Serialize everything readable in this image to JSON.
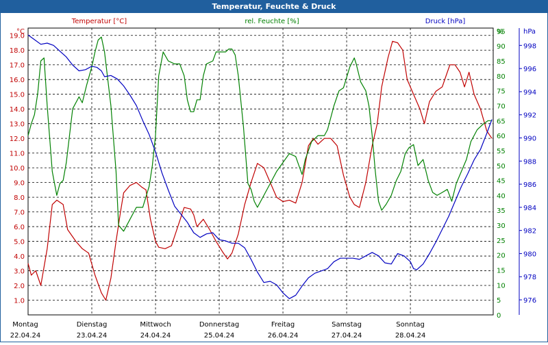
{
  "window": {
    "title": "Temperatur, Feuchte & Druck"
  },
  "chart_data": {
    "type": "line",
    "x": [
      "22.04.24",
      "23.04.24",
      "24.04.24",
      "25.04.24",
      "26.04.24",
      "27.04.24",
      "28.04.24"
    ],
    "day_names": [
      "Montag",
      "Dienstag",
      "Mittwoch",
      "Donnerstag",
      "Freitag",
      "Samstag",
      "Sonntag"
    ],
    "axes": {
      "temperature": {
        "title": "Temperatur [°C]",
        "unit": "°C",
        "min": 0,
        "max": 19.5,
        "ticks": [
          1.0,
          2.0,
          3.0,
          4.0,
          5.0,
          6.0,
          7.0,
          8.0,
          9.0,
          10.0,
          11.0,
          12.0,
          13.0,
          14.0,
          15.0,
          16.0,
          17.0,
          18.0,
          19.0
        ],
        "color": "#c00000"
      },
      "humidity": {
        "title": "rel. Feuchte [%]",
        "unit": "%",
        "min": 0,
        "max": 96,
        "ticks": [
          0,
          5,
          10,
          15,
          20,
          25,
          30,
          35,
          40,
          45,
          50,
          55,
          60,
          65,
          70,
          75,
          80,
          85,
          90,
          95
        ],
        "color": "#008000"
      },
      "pressure": {
        "title": "Druck [hPa]",
        "unit": "hPa",
        "min": 974.7,
        "max": 999.5,
        "ticks": [
          976,
          978,
          980,
          982,
          984,
          986,
          988,
          990,
          992,
          994,
          996,
          998
        ],
        "color": "#0000c0"
      }
    },
    "grid": true,
    "series": [
      {
        "name": "Temperatur [°C]",
        "axis": "temperature",
        "color": "#c00000",
        "points": [
          [
            0,
            3.5
          ],
          [
            0.05,
            2.7
          ],
          [
            0.12,
            3.0
          ],
          [
            0.2,
            2.0
          ],
          [
            0.3,
            4.5
          ],
          [
            0.38,
            7.5
          ],
          [
            0.45,
            7.8
          ],
          [
            0.55,
            7.5
          ],
          [
            0.62,
            5.8
          ],
          [
            0.75,
            5.0
          ],
          [
            0.85,
            4.5
          ],
          [
            0.95,
            4.2
          ],
          [
            1.05,
            2.7
          ],
          [
            1.15,
            1.5
          ],
          [
            1.22,
            1.0
          ],
          [
            1.3,
            2.5
          ],
          [
            1.38,
            5.0
          ],
          [
            1.45,
            7.0
          ],
          [
            1.5,
            8.3
          ],
          [
            1.6,
            8.8
          ],
          [
            1.7,
            9.0
          ],
          [
            1.78,
            8.7
          ],
          [
            1.85,
            8.5
          ],
          [
            1.92,
            6.5
          ],
          [
            2.0,
            5.0
          ],
          [
            2.05,
            4.6
          ],
          [
            2.15,
            4.5
          ],
          [
            2.25,
            4.7
          ],
          [
            2.35,
            6.0
          ],
          [
            2.45,
            7.3
          ],
          [
            2.55,
            7.2
          ],
          [
            2.6,
            6.8
          ],
          [
            2.65,
            6.0
          ],
          [
            2.75,
            6.5
          ],
          [
            2.85,
            5.8
          ],
          [
            2.95,
            5.0
          ],
          [
            3.05,
            4.3
          ],
          [
            3.13,
            3.8
          ],
          [
            3.2,
            4.2
          ],
          [
            3.3,
            5.5
          ],
          [
            3.4,
            7.5
          ],
          [
            3.5,
            9.0
          ],
          [
            3.6,
            10.3
          ],
          [
            3.7,
            10.0
          ],
          [
            3.8,
            9.0
          ],
          [
            3.9,
            8.0
          ],
          [
            4.0,
            7.7
          ],
          [
            4.1,
            7.8
          ],
          [
            4.2,
            7.6
          ],
          [
            4.3,
            9.0
          ],
          [
            4.4,
            11.5
          ],
          [
            4.48,
            12.0
          ],
          [
            4.55,
            11.6
          ],
          [
            4.65,
            12.0
          ],
          [
            4.75,
            12.0
          ],
          [
            4.85,
            11.5
          ],
          [
            4.95,
            9.5
          ],
          [
            5.05,
            8.0
          ],
          [
            5.12,
            7.5
          ],
          [
            5.2,
            7.3
          ],
          [
            5.3,
            9.0
          ],
          [
            5.4,
            11.5
          ],
          [
            5.48,
            13.0
          ],
          [
            5.55,
            15.5
          ],
          [
            5.65,
            17.5
          ],
          [
            5.72,
            18.6
          ],
          [
            5.8,
            18.5
          ],
          [
            5.88,
            18.0
          ],
          [
            5.95,
            16.0
          ],
          [
            6.05,
            15.0
          ],
          [
            6.15,
            14.0
          ],
          [
            6.22,
            13.0
          ],
          [
            6.3,
            14.5
          ],
          [
            6.4,
            15.2
          ],
          [
            6.5,
            15.5
          ],
          [
            6.58,
            16.5
          ],
          [
            6.62,
            17.0
          ],
          [
            6.7,
            17.0
          ],
          [
            6.78,
            16.5
          ],
          [
            6.85,
            15.5
          ],
          [
            6.92,
            16.5
          ],
          [
            7.0,
            15.0
          ],
          [
            7.1,
            14.0
          ],
          [
            7.2,
            12.5
          ],
          [
            7.28,
            12.0
          ]
        ]
      },
      {
        "name": "rel. Feuchte [%]",
        "axis": "humidity",
        "color": "#008000",
        "points": [
          [
            0,
            60
          ],
          [
            0.05,
            64
          ],
          [
            0.1,
            67
          ],
          [
            0.15,
            74
          ],
          [
            0.2,
            85
          ],
          [
            0.25,
            86
          ],
          [
            0.3,
            70
          ],
          [
            0.38,
            48
          ],
          [
            0.45,
            40
          ],
          [
            0.5,
            44
          ],
          [
            0.55,
            45
          ],
          [
            0.6,
            51
          ],
          [
            0.7,
            69
          ],
          [
            0.8,
            73
          ],
          [
            0.85,
            71
          ],
          [
            0.92,
            77
          ],
          [
            1.0,
            83
          ],
          [
            1.05,
            88
          ],
          [
            1.1,
            92
          ],
          [
            1.15,
            93
          ],
          [
            1.2,
            88
          ],
          [
            1.3,
            70
          ],
          [
            1.38,
            48
          ],
          [
            1.42,
            30
          ],
          [
            1.5,
            28
          ],
          [
            1.6,
            32
          ],
          [
            1.7,
            36
          ],
          [
            1.8,
            36
          ],
          [
            1.9,
            43
          ],
          [
            1.95,
            50
          ],
          [
            2.0,
            60
          ],
          [
            2.05,
            80
          ],
          [
            2.12,
            88
          ],
          [
            2.2,
            85
          ],
          [
            2.3,
            84
          ],
          [
            2.38,
            84
          ],
          [
            2.45,
            80
          ],
          [
            2.5,
            72
          ],
          [
            2.55,
            68
          ],
          [
            2.6,
            68
          ],
          [
            2.65,
            72
          ],
          [
            2.7,
            72
          ],
          [
            2.75,
            80
          ],
          [
            2.8,
            84
          ],
          [
            2.9,
            85
          ],
          [
            2.95,
            88
          ],
          [
            3.0,
            88
          ],
          [
            3.1,
            88
          ],
          [
            3.15,
            89
          ],
          [
            3.2,
            89
          ],
          [
            3.25,
            87
          ],
          [
            3.3,
            80
          ],
          [
            3.38,
            63
          ],
          [
            3.45,
            44
          ],
          [
            3.5,
            42
          ],
          [
            3.55,
            38
          ],
          [
            3.6,
            36
          ],
          [
            3.7,
            40
          ],
          [
            3.8,
            44
          ],
          [
            3.9,
            48
          ],
          [
            4.0,
            51
          ],
          [
            4.1,
            54
          ],
          [
            4.2,
            53
          ],
          [
            4.25,
            50
          ],
          [
            4.3,
            47
          ],
          [
            4.35,
            52
          ],
          [
            4.45,
            58
          ],
          [
            4.55,
            60
          ],
          [
            4.65,
            60
          ],
          [
            4.7,
            62
          ],
          [
            4.8,
            70
          ],
          [
            4.88,
            75
          ],
          [
            4.95,
            76
          ],
          [
            5.05,
            83
          ],
          [
            5.12,
            86
          ],
          [
            5.15,
            84
          ],
          [
            5.22,
            78
          ],
          [
            5.3,
            75
          ],
          [
            5.35,
            70
          ],
          [
            5.4,
            60
          ],
          [
            5.45,
            48
          ],
          [
            5.5,
            38
          ],
          [
            5.55,
            35
          ],
          [
            5.62,
            37
          ],
          [
            5.7,
            40
          ],
          [
            5.78,
            45
          ],
          [
            5.85,
            48
          ],
          [
            5.92,
            54
          ],
          [
            5.98,
            56
          ],
          [
            6.05,
            57
          ],
          [
            6.12,
            50
          ],
          [
            6.2,
            52
          ],
          [
            6.28,
            45
          ],
          [
            6.35,
            41
          ],
          [
            6.42,
            40
          ],
          [
            6.5,
            41
          ],
          [
            6.58,
            42
          ],
          [
            6.65,
            38
          ],
          [
            6.72,
            44
          ],
          [
            6.8,
            48
          ],
          [
            6.88,
            52
          ],
          [
            6.95,
            58
          ],
          [
            7.05,
            62
          ],
          [
            7.15,
            64
          ],
          [
            7.22,
            65
          ],
          [
            7.28,
            65
          ]
        ]
      },
      {
        "name": "Druck [hPa]",
        "axis": "pressure",
        "color": "#0000c0",
        "points": [
          [
            0,
            998.9
          ],
          [
            0.1,
            998.5
          ],
          [
            0.2,
            998.1
          ],
          [
            0.3,
            998.2
          ],
          [
            0.4,
            998.0
          ],
          [
            0.5,
            997.5
          ],
          [
            0.6,
            997.0
          ],
          [
            0.7,
            996.3
          ],
          [
            0.8,
            995.8
          ],
          [
            0.9,
            995.9
          ],
          [
            1.0,
            996.2
          ],
          [
            1.08,
            996.1
          ],
          [
            1.15,
            995.8
          ],
          [
            1.2,
            995.3
          ],
          [
            1.3,
            995.4
          ],
          [
            1.4,
            995.1
          ],
          [
            1.5,
            994.5
          ],
          [
            1.6,
            993.7
          ],
          [
            1.7,
            992.8
          ],
          [
            1.8,
            991.5
          ],
          [
            1.9,
            990.3
          ],
          [
            2.0,
            988.8
          ],
          [
            2.1,
            987.0
          ],
          [
            2.2,
            985.5
          ],
          [
            2.3,
            984.1
          ],
          [
            2.4,
            983.4
          ],
          [
            2.5,
            982.7
          ],
          [
            2.6,
            981.8
          ],
          [
            2.7,
            981.4
          ],
          [
            2.8,
            981.7
          ],
          [
            2.9,
            981.8
          ],
          [
            3.0,
            981.2
          ],
          [
            3.1,
            981.1
          ],
          [
            3.2,
            980.9
          ],
          [
            3.3,
            980.9
          ],
          [
            3.4,
            980.5
          ],
          [
            3.5,
            979.5
          ],
          [
            3.6,
            978.4
          ],
          [
            3.7,
            977.5
          ],
          [
            3.8,
            977.6
          ],
          [
            3.9,
            977.3
          ],
          [
            4.0,
            976.6
          ],
          [
            4.1,
            976.1
          ],
          [
            4.2,
            976.4
          ],
          [
            4.3,
            977.2
          ],
          [
            4.4,
            977.9
          ],
          [
            4.5,
            978.3
          ],
          [
            4.6,
            978.5
          ],
          [
            4.7,
            978.7
          ],
          [
            4.8,
            979.3
          ],
          [
            4.9,
            979.6
          ],
          [
            5.0,
            979.6
          ],
          [
            5.1,
            979.6
          ],
          [
            5.2,
            979.5
          ],
          [
            5.3,
            979.8
          ],
          [
            5.4,
            980.1
          ],
          [
            5.5,
            979.8
          ],
          [
            5.6,
            979.2
          ],
          [
            5.7,
            979.1
          ],
          [
            5.8,
            980.0
          ],
          [
            5.9,
            979.8
          ],
          [
            6.0,
            979.3
          ],
          [
            6.05,
            978.7
          ],
          [
            6.1,
            978.6
          ],
          [
            6.2,
            979.1
          ],
          [
            6.3,
            980.0
          ],
          [
            6.4,
            981.0
          ],
          [
            6.5,
            982.1
          ],
          [
            6.6,
            983.2
          ],
          [
            6.7,
            984.5
          ],
          [
            6.8,
            985.8
          ],
          [
            6.9,
            986.9
          ],
          [
            7.0,
            988.1
          ],
          [
            7.1,
            989.0
          ],
          [
            7.2,
            990.4
          ],
          [
            7.28,
            991.6
          ]
        ]
      }
    ]
  }
}
